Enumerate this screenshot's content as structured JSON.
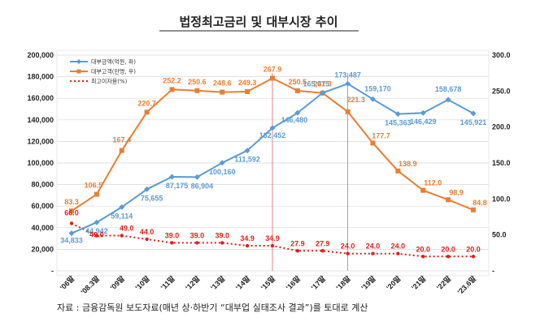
{
  "chart_data": {
    "type": "line",
    "title": "법정최고금리 및 대부시장 추이",
    "categories": [
      "'06말",
      "'08.3말",
      "'09말",
      "'10말",
      "'11말",
      "'12말",
      "'13말",
      "'14말",
      "'15말",
      "'16말",
      "'17말",
      "'18말",
      "'19말",
      "'20말",
      "'21말",
      "'22말",
      "'23.6말"
    ],
    "y_left": {
      "ticks": [
        "-",
        "20,000",
        "40,000",
        "60,000",
        "80,000",
        "100,000",
        "120,000",
        "140,000",
        "160,000",
        "180,000",
        "200,000"
      ],
      "min": 0,
      "max": 200000
    },
    "y_right": {
      "ticks": [
        "-",
        "50.0",
        "100.0",
        "150.0",
        "200.0",
        "250.0",
        "300.0"
      ],
      "min": 0,
      "max": 300
    },
    "legend_placement": "top-left",
    "series": [
      {
        "name": "대부금액(억원, 좌)",
        "axis": "left",
        "color": "#5b9bd5",
        "values": [
          34833,
          44942,
          59114,
          75655,
          87175,
          86904,
          100160,
          111592,
          132452,
          146480,
          165015,
          173487,
          159170,
          145363,
          146429,
          158678,
          145921
        ],
        "labels": [
          "34,833",
          "44,942",
          "59,114",
          "75,655",
          "87,175",
          "86,904",
          "100,160",
          "111,592",
          "132,452",
          "146,480",
          "165,015",
          "173,487",
          "159,170",
          "145,363",
          "146,429",
          "158,678",
          "145,921"
        ]
      },
      {
        "name": "대부고객(만명, 우)",
        "axis": "right",
        "color": "#ed7d31",
        "values": [
          83.3,
          106.5,
          167.4,
          220.7,
          252.2,
          250.6,
          248.6,
          249.3,
          267.9,
          250.5,
          247.3,
          221.3,
          177.7,
          138.9,
          112.0,
          98.9,
          84.8
        ],
        "labels": [
          "83.3",
          "106.5",
          "167.4",
          "220.7",
          "252.2",
          "250.6",
          "248.6",
          "249.3",
          "267.9",
          "250.5",
          "247.3",
          "221.3",
          "177.7",
          "138.9",
          "112.0",
          "98.9",
          "84.8"
        ]
      },
      {
        "name": "최고이자율(%)",
        "axis": "right",
        "color": "#e0201c",
        "values": [
          66.0,
          49.0,
          49.0,
          44.0,
          39.0,
          39.0,
          39.0,
          34.9,
          34.9,
          27.9,
          27.9,
          24.0,
          24.0,
          24.0,
          20.0,
          20.0,
          20.0
        ],
        "labels": [
          "66.0",
          "49.0",
          "49.0",
          "44.0",
          "39.0",
          "39.0",
          "39.0",
          "34.9",
          "34.9",
          "27.9",
          "27.9",
          "24.0",
          "24.0",
          "24.0",
          "20.0",
          "20.0",
          "20.0"
        ]
      }
    ],
    "grid": true
  },
  "source_text": "자료 : 금융감독원 보도자료(매년 상·하반기 “대부업 실태조사 결과”)를 토대로 계산"
}
